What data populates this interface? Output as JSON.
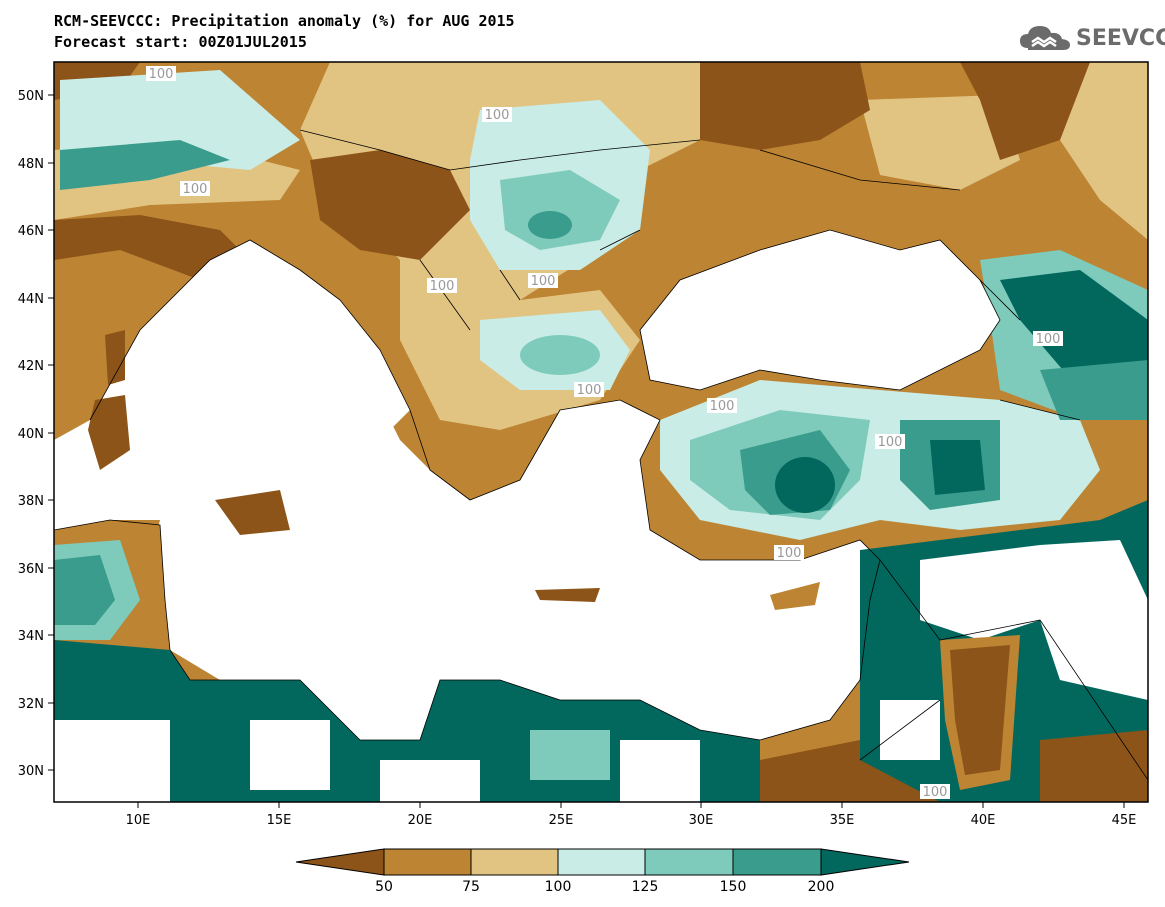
{
  "header": {
    "title_line1": "RCM-SEEVCCC: Precipitation anomaly (%) for AUG 2015",
    "title_line2": "Forecast start: 00Z01JUL2015"
  },
  "logo": {
    "text": "SEEVCCC",
    "icon": "cloud-icon"
  },
  "map": {
    "lat_labels": [
      "50N",
      "48N",
      "46N",
      "44N",
      "42N",
      "40N",
      "38N",
      "36N",
      "34N",
      "32N",
      "30N"
    ],
    "lon_labels": [
      "10E",
      "15E",
      "20E",
      "25E",
      "30E",
      "35E",
      "40E",
      "45E"
    ],
    "contour_labels": [
      "100",
      "100",
      "100",
      "100",
      "100",
      "100",
      "100",
      "100",
      "100",
      "100",
      "100",
      "100"
    ]
  },
  "colorbar": {
    "ticks": [
      "50",
      "75",
      "100",
      "125",
      "150",
      "200"
    ],
    "colors": [
      "#8c5418",
      "#bd8433",
      "#e2c482",
      "#c9ece6",
      "#7ecbbc",
      "#399c8c",
      "#02685e"
    ]
  },
  "colors": {
    "very_dry": "#8c5418",
    "dry": "#bd8433",
    "slightly_dry": "#e2c482",
    "slightly_wet": "#c9ece6",
    "wet": "#7ecbbc",
    "very_wet": "#399c8c",
    "extremely_wet": "#02685e"
  }
}
